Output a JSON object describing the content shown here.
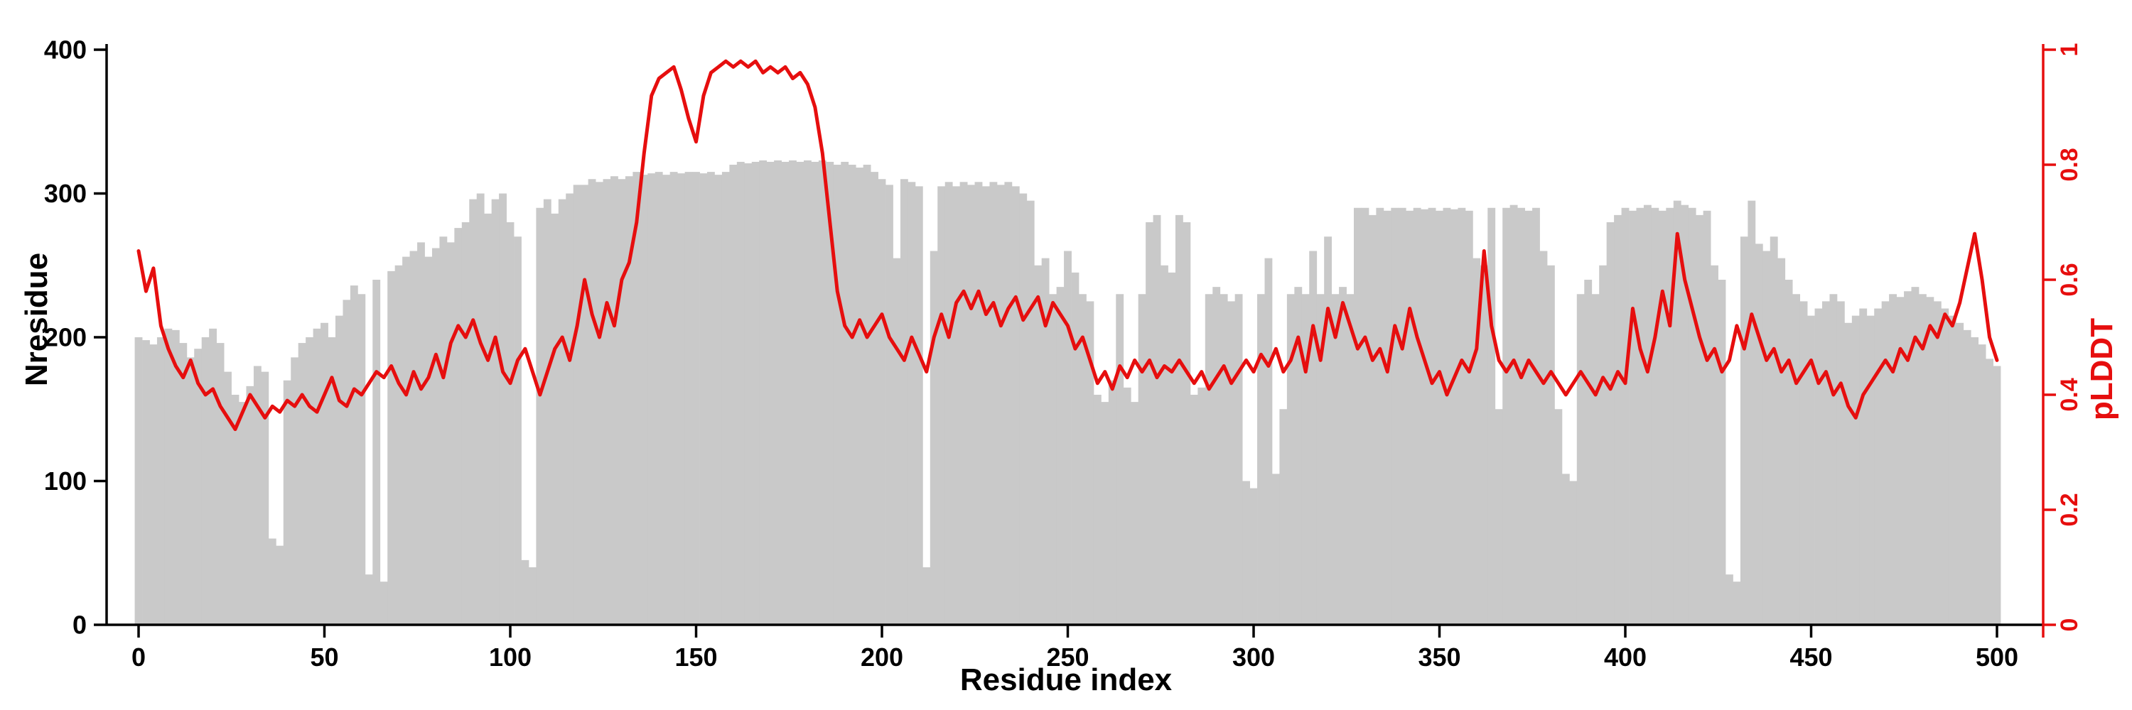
{
  "chart_data": {
    "type": "bar+line",
    "title": "",
    "xlabel": "Residue index",
    "ylabel_left": "Nresidue",
    "ylabel_right": "pLDDT",
    "xlim": [
      0,
      500
    ],
    "ylim_left": [
      0,
      400
    ],
    "ylim_right": [
      0,
      1
    ],
    "x_ticks": [
      0,
      50,
      100,
      150,
      200,
      250,
      300,
      350,
      400,
      450,
      500
    ],
    "y_ticks_left": [
      0,
      100,
      200,
      300,
      400
    ],
    "y_ticks_right": [
      0,
      0.2,
      0.4,
      0.6,
      0.8,
      1
    ],
    "grid": false,
    "legend": "none",
    "colors": {
      "bar": "#c9c9c9",
      "line": "#e60e0e",
      "axis_left": "#000000",
      "axis_right": "#e60e0e"
    },
    "x_start": 0,
    "x_step": 2,
    "series": [
      {
        "name": "Nresidue",
        "type": "bar",
        "axis": "left",
        "values": [
          200,
          198,
          195,
          200,
          206,
          205,
          196,
          186,
          192,
          200,
          206,
          196,
          176,
          160,
          155,
          166,
          180,
          176,
          60,
          55,
          170,
          186,
          196,
          200,
          206,
          210,
          200,
          215,
          226,
          236,
          230,
          35,
          240,
          30,
          246,
          250,
          256,
          260,
          266,
          256,
          262,
          270,
          266,
          276,
          280,
          296,
          300,
          286,
          296,
          300,
          280,
          270,
          45,
          40,
          290,
          296,
          286,
          296,
          300,
          306,
          306,
          310,
          308,
          310,
          312,
          310,
          312,
          315,
          313,
          314,
          315,
          313,
          315,
          314,
          315,
          315,
          314,
          315,
          313,
          315,
          320,
          322,
          321,
          322,
          323,
          322,
          323,
          322,
          323,
          322,
          323,
          322,
          323,
          322,
          320,
          322,
          320,
          318,
          320,
          315,
          310,
          306,
          255,
          310,
          308,
          305,
          40,
          260,
          305,
          308,
          305,
          308,
          306,
          308,
          305,
          308,
          306,
          308,
          305,
          300,
          295,
          250,
          255,
          230,
          235,
          260,
          245,
          230,
          225,
          160,
          155,
          170,
          230,
          165,
          155,
          230,
          280,
          285,
          250,
          245,
          285,
          280,
          160,
          165,
          230,
          235,
          230,
          225,
          230,
          100,
          95,
          230,
          255,
          105,
          150,
          230,
          235,
          230,
          260,
          230,
          270,
          230,
          235,
          230,
          290,
          290,
          285,
          290,
          288,
          290,
          290,
          288,
          290,
          289,
          290,
          288,
          290,
          289,
          290,
          288,
          255,
          250,
          290,
          150,
          290,
          292,
          290,
          288,
          290,
          260,
          250,
          150,
          105,
          100,
          230,
          240,
          230,
          250,
          280,
          285,
          290,
          288,
          290,
          292,
          290,
          288,
          290,
          295,
          292,
          290,
          285,
          288,
          250,
          240,
          35,
          30,
          270,
          295,
          265,
          260,
          270,
          255,
          240,
          230,
          225,
          215,
          220,
          225,
          230,
          225,
          210,
          215,
          220,
          215,
          220,
          225,
          230,
          228,
          232,
          235,
          230,
          228,
          225,
          220,
          215,
          210,
          205,
          200,
          195,
          185,
          180
        ]
      },
      {
        "name": "pLDDT",
        "type": "line",
        "axis": "right",
        "values": [
          0.65,
          0.58,
          0.62,
          0.52,
          0.48,
          0.45,
          0.43,
          0.46,
          0.42,
          0.4,
          0.41,
          0.38,
          0.36,
          0.34,
          0.37,
          0.4,
          0.38,
          0.36,
          0.38,
          0.37,
          0.39,
          0.38,
          0.4,
          0.38,
          0.37,
          0.4,
          0.43,
          0.39,
          0.38,
          0.41,
          0.4,
          0.42,
          0.44,
          0.43,
          0.45,
          0.42,
          0.4,
          0.44,
          0.41,
          0.43,
          0.47,
          0.43,
          0.49,
          0.52,
          0.5,
          0.53,
          0.49,
          0.46,
          0.5,
          0.44,
          0.42,
          0.46,
          0.48,
          0.44,
          0.4,
          0.44,
          0.48,
          0.5,
          0.46,
          0.52,
          0.6,
          0.54,
          0.5,
          0.56,
          0.52,
          0.6,
          0.63,
          0.7,
          0.82,
          0.92,
          0.95,
          0.96,
          0.97,
          0.93,
          0.88,
          0.84,
          0.92,
          0.96,
          0.97,
          0.98,
          0.97,
          0.98,
          0.97,
          0.98,
          0.96,
          0.97,
          0.96,
          0.97,
          0.95,
          0.96,
          0.94,
          0.9,
          0.82,
          0.7,
          0.58,
          0.52,
          0.5,
          0.53,
          0.5,
          0.52,
          0.54,
          0.5,
          0.48,
          0.46,
          0.5,
          0.47,
          0.44,
          0.5,
          0.54,
          0.5,
          0.56,
          0.58,
          0.55,
          0.58,
          0.54,
          0.56,
          0.52,
          0.55,
          0.57,
          0.53,
          0.55,
          0.57,
          0.52,
          0.56,
          0.54,
          0.52,
          0.48,
          0.5,
          0.46,
          0.42,
          0.44,
          0.41,
          0.45,
          0.43,
          0.46,
          0.44,
          0.46,
          0.43,
          0.45,
          0.44,
          0.46,
          0.44,
          0.42,
          0.44,
          0.41,
          0.43,
          0.45,
          0.42,
          0.44,
          0.46,
          0.44,
          0.47,
          0.45,
          0.48,
          0.44,
          0.46,
          0.5,
          0.44,
          0.52,
          0.46,
          0.55,
          0.5,
          0.56,
          0.52,
          0.48,
          0.5,
          0.46,
          0.48,
          0.44,
          0.52,
          0.48,
          0.55,
          0.5,
          0.46,
          0.42,
          0.44,
          0.4,
          0.43,
          0.46,
          0.44,
          0.48,
          0.65,
          0.52,
          0.46,
          0.44,
          0.46,
          0.43,
          0.46,
          0.44,
          0.42,
          0.44,
          0.42,
          0.4,
          0.42,
          0.44,
          0.42,
          0.4,
          0.43,
          0.41,
          0.44,
          0.42,
          0.55,
          0.48,
          0.44,
          0.5,
          0.58,
          0.52,
          0.68,
          0.6,
          0.55,
          0.5,
          0.46,
          0.48,
          0.44,
          0.46,
          0.52,
          0.48,
          0.54,
          0.5,
          0.46,
          0.48,
          0.44,
          0.46,
          0.42,
          0.44,
          0.46,
          0.42,
          0.44,
          0.4,
          0.42,
          0.38,
          0.36,
          0.4,
          0.42,
          0.44,
          0.46,
          0.44,
          0.48,
          0.46,
          0.5,
          0.48,
          0.52,
          0.5,
          0.54,
          0.52,
          0.56,
          0.62,
          0.68,
          0.6,
          0.5,
          0.46
        ]
      }
    ]
  }
}
